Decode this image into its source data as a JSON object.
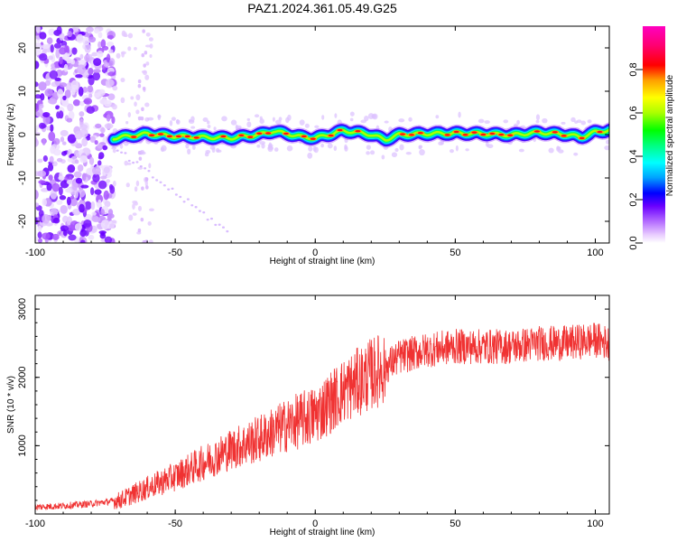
{
  "chart_data": [
    {
      "type": "heatmap",
      "title": "PAZ1.2024.361.05.49.G25",
      "xlabel": "Height of straight line (km)",
      "ylabel": "Frequency (Hz)",
      "xlim": [
        -100,
        105
      ],
      "ylim": [
        -25,
        25
      ],
      "xticks": [
        -100,
        -50,
        0,
        50,
        100
      ],
      "yticks": [
        -20,
        -10,
        0,
        10,
        20
      ],
      "colorbar": {
        "label": "Normalized spectral amplitude",
        "range": [
          0,
          1
        ],
        "ticks": [
          0.0,
          0.2,
          0.4,
          0.6,
          0.8
        ],
        "tick_labels": [
          "0.0",
          "0.2",
          "0.4",
          "0.6",
          "0.8"
        ]
      },
      "signal_track": {
        "x": [
          -72,
          -60,
          -50,
          -40,
          -30,
          -20,
          -15,
          -10,
          -5,
          0,
          5,
          10,
          15,
          20,
          25,
          30,
          40,
          50,
          60,
          70,
          80,
          90,
          95,
          100,
          105
        ],
        "frequency": [
          -0.8,
          0.2,
          -0.4,
          -0.6,
          -0.8,
          0.0,
          0.8,
          0.2,
          -0.5,
          -0.8,
          0.0,
          0.9,
          0.5,
          0.0,
          -1.2,
          0.0,
          0.2,
          0.3,
          0.2,
          -0.1,
          0.5,
          0.0,
          -0.6,
          0.6,
          1.0
        ]
      }
    },
    {
      "type": "line",
      "xlabel": "Height of straight line (km)",
      "ylabel": "SNR (10 * v/v)",
      "xlim": [
        -100,
        105
      ],
      "ylim": [
        0,
        3200
      ],
      "xticks": [
        -100,
        -50,
        0,
        50,
        100
      ],
      "yticks": [
        1000,
        2000,
        3000
      ],
      "series_color": "#f03232",
      "trend": {
        "x": [
          -100,
          -90,
          -80,
          -70,
          -60,
          -50,
          -40,
          -30,
          -20,
          -10,
          0,
          10,
          20,
          25,
          30,
          40,
          50,
          60,
          70,
          80,
          90,
          100,
          105
        ],
        "y": [
          100,
          120,
          150,
          200,
          380,
          550,
          750,
          950,
          1100,
          1300,
          1450,
          1800,
          2050,
          2150,
          2300,
          2400,
          2450,
          2450,
          2450,
          2500,
          2500,
          2550,
          2500
        ]
      }
    }
  ]
}
